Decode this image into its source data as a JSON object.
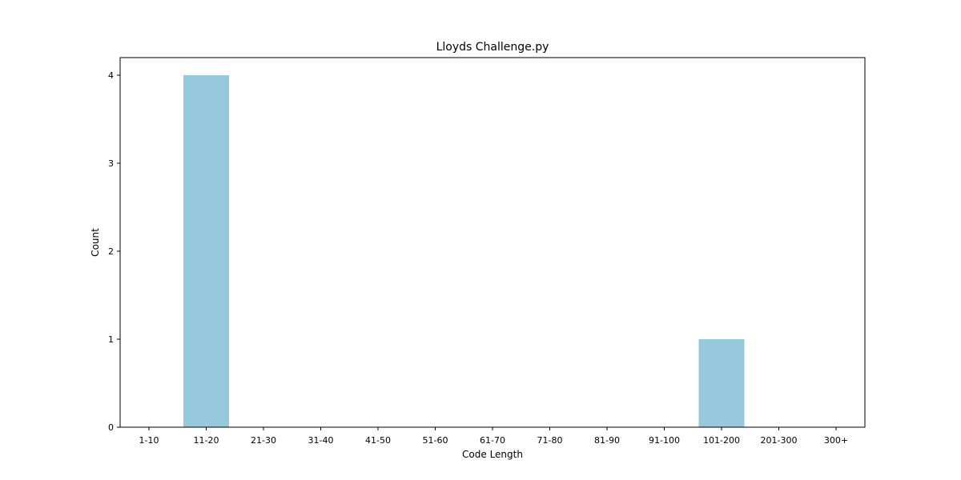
{
  "chart_data": {
    "type": "bar",
    "title": "Lloyds Challenge.py",
    "xlabel": "Code Length",
    "ylabel": "Count",
    "categories": [
      "1-10",
      "11-20",
      "21-30",
      "31-40",
      "41-50",
      "51-60",
      "61-70",
      "71-80",
      "81-90",
      "91-100",
      "101-200",
      "201-300",
      "300+"
    ],
    "values": [
      0,
      4,
      0,
      0,
      0,
      0,
      0,
      0,
      0,
      0,
      1,
      0,
      0
    ],
    "ylim": [
      0,
      4.2
    ],
    "yticks": [
      0,
      1,
      2,
      3,
      4
    ],
    "grid": false,
    "bar_color": "#96c9dc"
  }
}
